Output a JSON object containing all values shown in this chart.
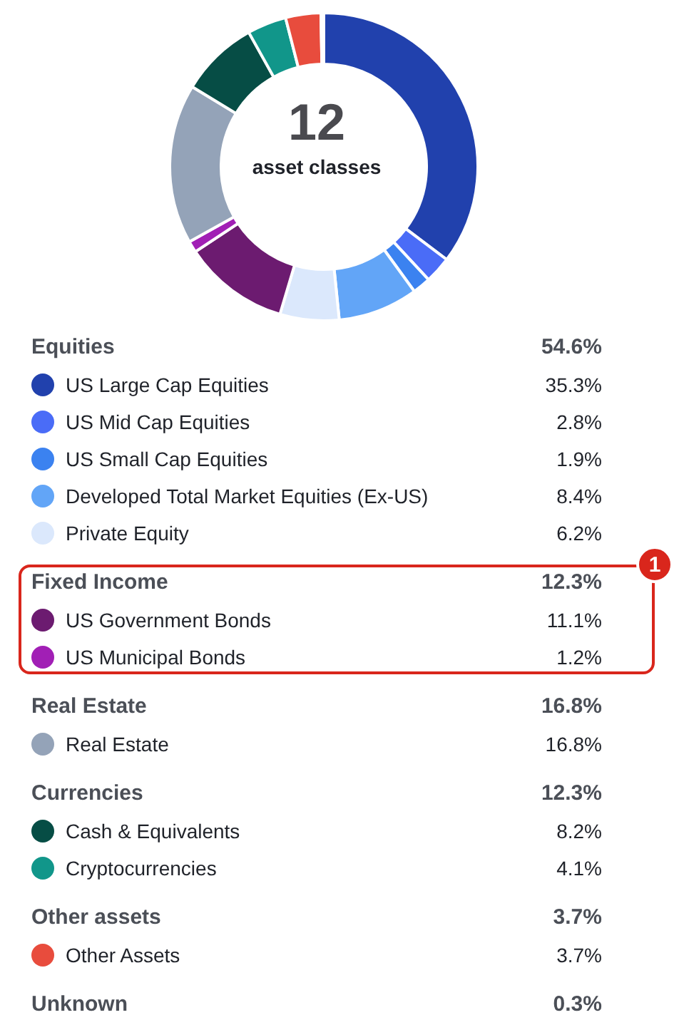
{
  "chart_data": {
    "type": "donut",
    "legend": "bottom",
    "categories": [
      "US Large Cap Equities",
      "US Mid Cap Equities",
      "US Small Cap Equities",
      "Developed Total Market Equities (Ex-US)",
      "Private Equity",
      "US Government Bonds",
      "US Municipal Bonds",
      "Real Estate",
      "Cash & Equivalents",
      "Cryptocurrencies",
      "Other Assets",
      null
    ],
    "values": [
      35.3,
      2.8,
      1.9,
      8.4,
      6.2,
      11.1,
      1.2,
      16.8,
      8.2,
      4.1,
      3.7,
      0.3
    ],
    "colors": [
      "#2141ad",
      "#4a6cf7",
      "#3b82f0",
      "#62a5f7",
      "#dbe8fc",
      "#6c1b70",
      "#a11fb5",
      "#94a3b8",
      "#064d45",
      "#11968a",
      "#e84c3d",
      "#b9c0c9"
    ],
    "value_labels": [
      "35.3%",
      "2.8%",
      "1.9%",
      "8.4%",
      "6.2%",
      "11.1%",
      "1.2%",
      "16.8%",
      "8.2%",
      "4.1%",
      "3.7%",
      null
    ],
    "annotations": [
      "12",
      "asset classes",
      "Equities",
      "54.6%",
      "Fixed Income",
      "12.3%",
      "Real Estate",
      "16.8%",
      "Currencies",
      "12.3%",
      "Other assets",
      "3.7%",
      "Unknown",
      "0.3%",
      "1"
    ]
  }
}
